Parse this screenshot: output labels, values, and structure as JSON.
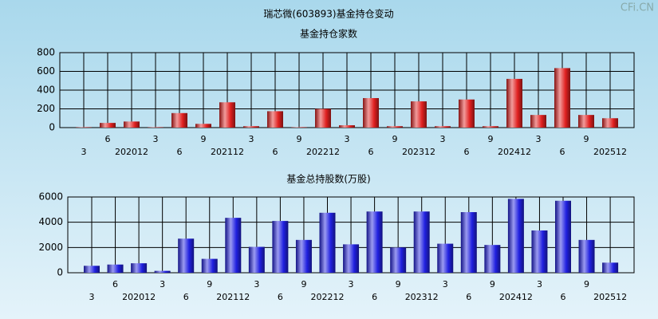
{
  "title": "瑞芯微(603893)基金持仓变动",
  "watermark": "CFi.CN",
  "chart_data": [
    {
      "type": "bar",
      "title": "基金持仓家数",
      "categories": [
        "3",
        "6",
        "202012",
        "3",
        "6",
        "9",
        "202112",
        "3",
        "6",
        "9",
        "202212",
        "3",
        "6",
        "9",
        "202312",
        "3",
        "6",
        "9",
        "202412",
        "3",
        "6",
        "9",
        "202512"
      ],
      "series": [
        {
          "color": "#e02020",
          "values": [
            5,
            50,
            65,
            5,
            155,
            40,
            270,
            15,
            175,
            5,
            200,
            25,
            315,
            15,
            280,
            15,
            300,
            15,
            520,
            135,
            635,
            135,
            100
          ]
        }
      ],
      "ylim": [
        0,
        800
      ],
      "yticks": [
        0,
        200,
        400,
        600,
        800
      ],
      "grid": true
    },
    {
      "type": "bar",
      "title": "基金总持股数(万股)",
      "categories": [
        "3",
        "6",
        "202012",
        "3",
        "6",
        "9",
        "202112",
        "3",
        "6",
        "9",
        "202212",
        "3",
        "6",
        "9",
        "202312",
        "3",
        "6",
        "9",
        "202412",
        "3",
        "6",
        "9",
        "202512"
      ],
      "series": [
        {
          "color": "#2020e0",
          "values": [
            550,
            650,
            750,
            150,
            2700,
            1100,
            4350,
            2050,
            4100,
            2600,
            4750,
            2250,
            4850,
            2000,
            4850,
            2300,
            4800,
            2200,
            5850,
            3350,
            5700,
            2600,
            800
          ]
        }
      ],
      "ylim": [
        0,
        6000
      ],
      "yticks": [
        0,
        2000,
        4000,
        6000
      ],
      "grid": true
    }
  ]
}
